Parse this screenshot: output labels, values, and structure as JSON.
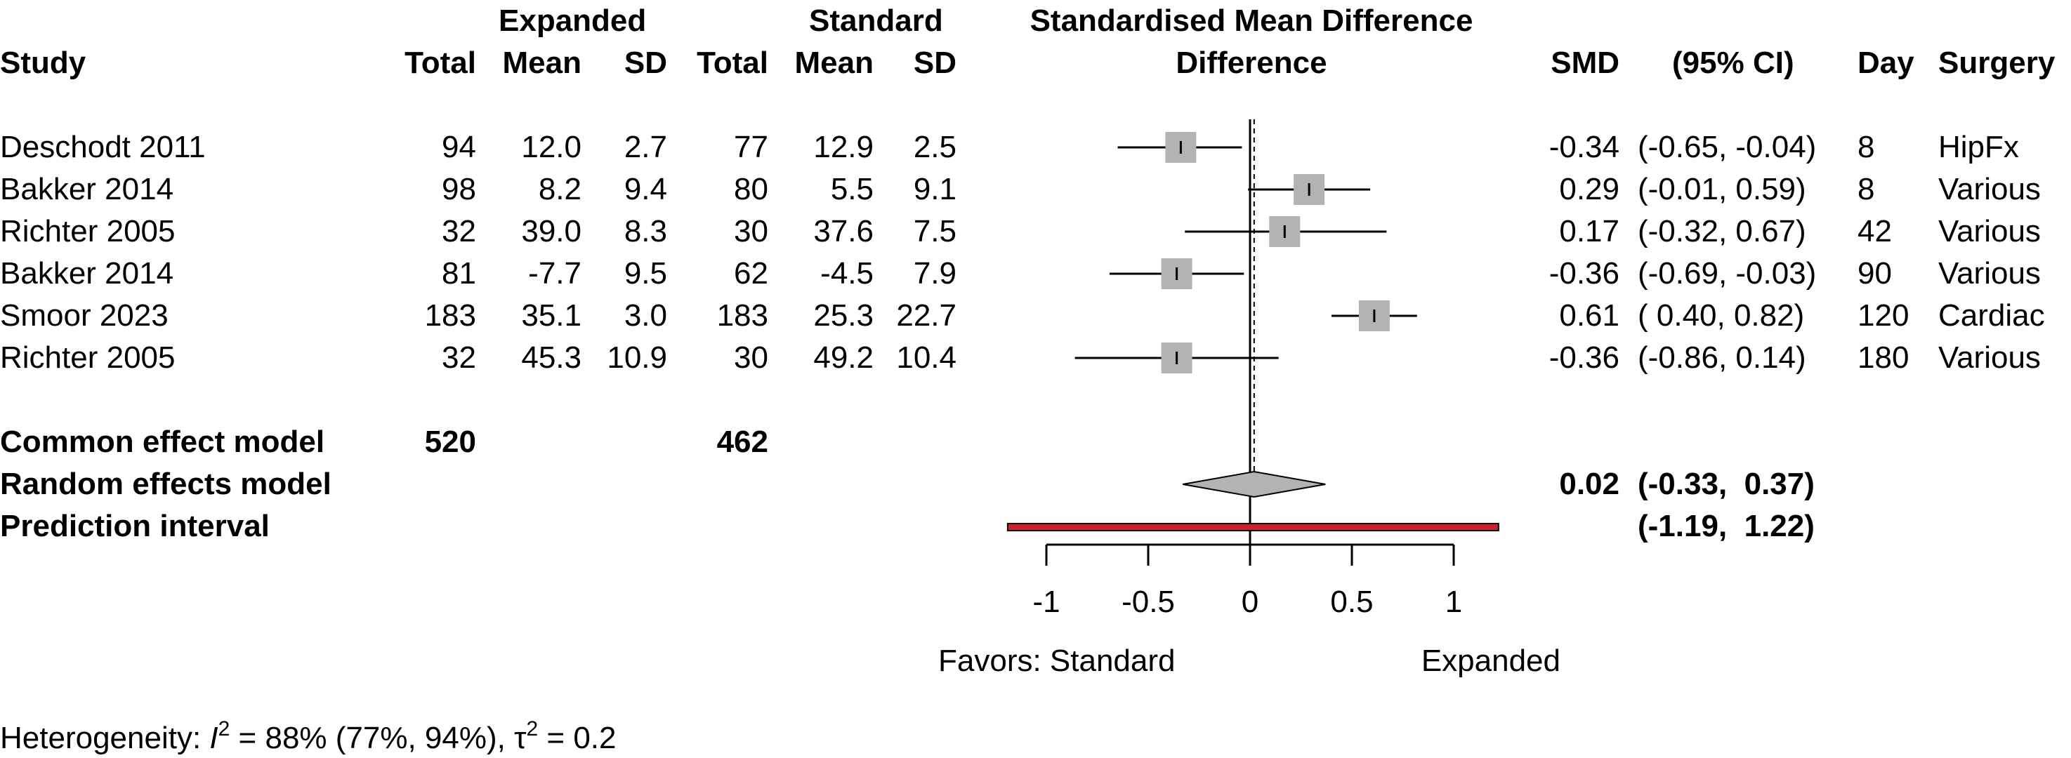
{
  "chart_data": {
    "type": "forest",
    "title": "Standardised Mean Difference",
    "group_headers": {
      "experimental": "Expanded",
      "control": "Standard"
    },
    "columns": {
      "study": "Study",
      "total": "Total",
      "mean": "Mean",
      "sd": "SD",
      "smd": "SMD",
      "ci": "(95% CI)",
      "day": "Day",
      "surgery": "Surgery"
    },
    "studies": [
      {
        "study": "Deschodt 2011",
        "e_total": "94",
        "e_mean": "12.0",
        "e_sd": "2.7",
        "c_total": "77",
        "c_mean": "12.9",
        "c_sd": "2.5",
        "smd": -0.34,
        "lower": -0.65,
        "upper": -0.04,
        "weight": 1.0,
        "smd_text": "-0.34",
        "ci_text": "(-0.65, -0.04)",
        "day": "8",
        "surgery": "HipFx"
      },
      {
        "study": "Bakker 2014",
        "e_total": "98",
        "e_mean": "8.2",
        "e_sd": "9.4",
        "c_total": "80",
        "c_mean": "5.5",
        "c_sd": "9.1",
        "smd": 0.29,
        "lower": -0.01,
        "upper": 0.59,
        "weight": 1.0,
        "smd_text": "0.29",
        "ci_text": "(-0.01,  0.59)",
        "day": "8",
        "surgery": "Various"
      },
      {
        "study": "Richter 2005",
        "e_total": "32",
        "e_mean": "39.0",
        "e_sd": "8.3",
        "c_total": "30",
        "c_mean": "37.6",
        "c_sd": "7.5",
        "smd": 0.17,
        "lower": -0.32,
        "upper": 0.67,
        "weight": 1.0,
        "smd_text": "0.17",
        "ci_text": "(-0.32,  0.67)",
        "day": "42",
        "surgery": "Various"
      },
      {
        "study": "Bakker 2014",
        "e_total": "81",
        "e_mean": "-7.7",
        "e_sd": "9.5",
        "c_total": "62",
        "c_mean": "-4.5",
        "c_sd": "7.9",
        "smd": -0.36,
        "lower": -0.69,
        "upper": -0.03,
        "weight": 1.0,
        "smd_text": "-0.36",
        "ci_text": "(-0.69, -0.03)",
        "day": "90",
        "surgery": "Various"
      },
      {
        "study": "Smoor 2023",
        "e_total": "183",
        "e_mean": "35.1",
        "e_sd": "3.0",
        "c_total": "183",
        "c_mean": "25.3",
        "c_sd": "22.7",
        "smd": 0.61,
        "lower": 0.4,
        "upper": 0.82,
        "weight": 1.0,
        "smd_text": "0.61",
        "ci_text": "( 0.40,  0.82)",
        "day": "120",
        "surgery": "Cardiac"
      },
      {
        "study": "Richter 2005",
        "e_total": "32",
        "e_mean": "45.3",
        "e_sd": "10.9",
        "c_total": "30",
        "c_mean": "49.2",
        "c_sd": "10.4",
        "smd": -0.36,
        "lower": -0.86,
        "upper": 0.14,
        "weight": 1.0,
        "smd_text": "-0.36",
        "ci_text": "(-0.86,  0.14)",
        "day": "180",
        "surgery": "Various"
      }
    ],
    "common_effect": {
      "label": "Common effect model",
      "e_total": "520",
      "c_total": "462"
    },
    "random_effects": {
      "label": "Random effects model",
      "smd": 0.02,
      "lower": -0.33,
      "upper": 0.37,
      "smd_text": "0.02",
      "ci_text": "(-0.33,  0.37)"
    },
    "prediction_interval": {
      "label": "Prediction interval",
      "lower": -1.19,
      "upper": 1.22,
      "ci_text": "(-1.19,  1.22)"
    },
    "x_axis": {
      "range": [
        -1,
        1
      ],
      "ticks": [
        -1,
        -0.5,
        0,
        0.5,
        1
      ],
      "tick_labels": [
        "-1",
        "-0.5",
        "0",
        "0.5",
        "1"
      ]
    },
    "favors": {
      "left": "Favors: Standard",
      "right": "Expanded"
    },
    "heterogeneity": {
      "prefix": "Heterogeneity: ",
      "i2_symbol": "I",
      "i2_sup": "2",
      "i2_value": " = 88% (77%, 94%), ",
      "tau_symbol": "τ",
      "tau_sup": "2",
      "tau_value": " = 0.2"
    },
    "colors": {
      "square": "#b3b3b3",
      "diamond": "#b3b3b3",
      "prediction": "#d0202c",
      "line": "#000000"
    }
  }
}
